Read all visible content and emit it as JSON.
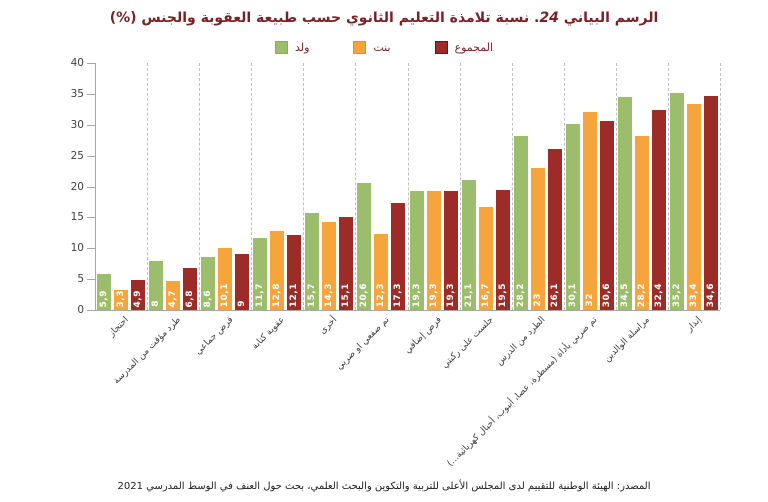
{
  "title": {
    "part1": "الرسم البياني",
    "num": "24",
    "part2": ". نسبة تلامذة التعليم الثانوي حسب طبيعة العقوبة والجنس (%)"
  },
  "legend": {
    "items": [
      {
        "label": "ولد",
        "color": "#9cbe6c",
        "border": "#8aab5c"
      },
      {
        "label": "بنت",
        "color": "#f6a43c",
        "border": "#e0912c"
      },
      {
        "label": "المجموع",
        "color": "#9d2b27",
        "border": "#6e1514"
      }
    ]
  },
  "chart_data": {
    "type": "bar",
    "title": "نسبة تلامذة التعليم الثانوي حسب طبيعة العقوبة والجنس (%)",
    "xlabel": "",
    "ylabel": "",
    "ylim": [
      0,
      40
    ],
    "yticks": [
      0,
      5,
      10,
      15,
      20,
      25,
      30,
      35,
      40
    ],
    "grid": "vertical dashed separators between categories",
    "legend_position": "top-center",
    "categories": [
      "احتجاز",
      "طرد مؤقت من المدرسة",
      "فرض جماعي",
      "عقوبة كتابة",
      "أخرى",
      "تم صفعي او ضربي",
      "فرض إضافي",
      "جلست على ركبتي",
      "الطرد من الدرس",
      "تم ضربي بأداة (مسطرة، عصا، أنبوب، أحبال كهربائية...)",
      "مراسلة الوالدين",
      "إنذار"
    ],
    "series": [
      {
        "name": "ولد",
        "color": "#9cbe6c",
        "values": [
          5.9,
          8,
          8.6,
          11.7,
          15.7,
          20.6,
          19.3,
          21.1,
          28.2,
          30.1,
          34.5,
          35.2
        ],
        "labels": [
          "5,9",
          "8",
          "8,6",
          "11,7",
          "15,7",
          "20,6",
          "19,3",
          "21,1",
          "28,2",
          "30,1",
          "34,5",
          "35,2"
        ]
      },
      {
        "name": "بنت",
        "color": "#f6a43c",
        "values": [
          3.3,
          4.7,
          10.1,
          12.8,
          14.3,
          12.3,
          19.3,
          16.7,
          23,
          32,
          28.2,
          33.4
        ],
        "labels": [
          "3,3",
          "4,7",
          "10,1",
          "12,8",
          "14,3",
          "12,3",
          "19,3",
          "16,7",
          "23",
          "32",
          "28,2",
          "33,4"
        ]
      },
      {
        "name": "المجموع",
        "color": "#9d2b27",
        "values": [
          4.9,
          6.8,
          9,
          12.1,
          15.1,
          17.3,
          19.3,
          19.5,
          26.1,
          30.6,
          32.4,
          34.6
        ],
        "labels": [
          "4,9",
          "6,8",
          "9",
          "12,1",
          "15,1",
          "17,3",
          "19,3",
          "19,5",
          "26,1",
          "30,6",
          "32,4",
          "34,6"
        ]
      }
    ]
  },
  "source": "المصدر: الهيئة الوطنية للتقييم لدى المجلس الأعلى للتربية والتكوين والبحث العلمي، بحث حول العنف في الوسط المدرسي 2021"
}
